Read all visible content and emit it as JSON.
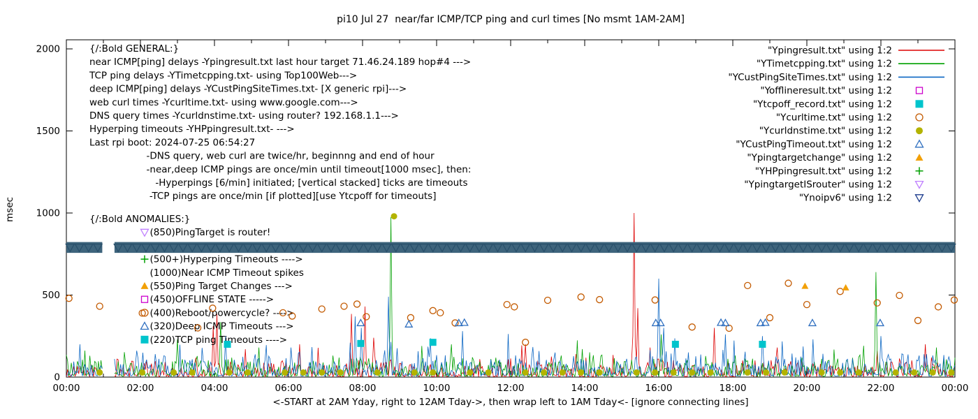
{
  "title": "pi10 Jul 27  near/far ICMP/TCP ping and curl times [No msmt 1AM-2AM]",
  "ylabel": "msec",
  "xlabel": "<-START at 2AM Yday, right to 12AM Tday->, then wrap left to 1AM Tday<- [ignore connecting lines]",
  "axes": {
    "x_ticks": [
      "00:00",
      "02:00",
      "04:00",
      "06:00",
      "08:00",
      "10:00",
      "12:00",
      "14:00",
      "16:00",
      "18:00",
      "20:00",
      "22:00",
      "00:00"
    ],
    "y_ticks": [
      0,
      500,
      1000,
      1500,
      2000
    ],
    "xlim_hours": [
      0,
      24
    ],
    "ylim": [
      0,
      2000
    ],
    "grid": false
  },
  "legend": [
    {
      "label": "\"Ypingresult.txt\" using 1:2",
      "marker": "line",
      "color": "#dd0000"
    },
    {
      "label": "\"YTimetcpping.txt\" using 1:2",
      "marker": "line",
      "color": "#00a000"
    },
    {
      "label": "\"YCustPingSiteTimes.txt\" using 1:2",
      "marker": "line",
      "color": "#0b66c3"
    },
    {
      "label": "\"Yofflineresult.txt\" using 1:2",
      "marker": "square-open",
      "color": "#cc00cc"
    },
    {
      "label": "\"Ytcpoff_record.txt\" using 1:2",
      "marker": "square-filled",
      "color": "#00c4cc"
    },
    {
      "label": "\"Ycurltime.txt\" using 1:2",
      "marker": "circle-open",
      "color": "#c35a00"
    },
    {
      "label": "\"Ycurldnstime.txt\" using 1:2",
      "marker": "circle-filled",
      "color": "#b3b300"
    },
    {
      "label": "\"YCustPingTimeout.txt\" using 1:2",
      "marker": "triangle-open",
      "color": "#3070c0"
    },
    {
      "label": "\"Ypingtargetchange\" using 1:2",
      "marker": "triangle-filled",
      "color": "#f2a007"
    },
    {
      "label": "\"YHPpingresult.txt\" using 1:2",
      "marker": "plus",
      "color": "#00a000"
    },
    {
      "label": "\"YpingtargetISrouter\" using 1:2",
      "marker": "triangle-down-open",
      "color": "#c080ff"
    },
    {
      "label": "\"Ynoipv6\" using 1:2",
      "marker": "triangle-down-open",
      "color": "#1a3a8c"
    }
  ],
  "general_text": [
    "{/:Bold GENERAL:}",
    "near ICMP[ping] delays -Ypingresult.txt last hour target 71.46.24.189 hop#4 --->",
    "TCP ping delays -YTimetcpping.txt- using Top100Web--->",
    "deep ICMP[ping] delays -YCustPingSiteTimes.txt- [X generic rpi]--->",
    "web curl times -Ycurltime.txt- using www.google.com--->",
    "DNS query times -Ycurldnstime.txt- using router? 192.168.1.1--->",
    "Hyperping timeouts -YHPpingresult.txt- --->",
    "Last rpi boot: 2024-07-25 06:54:27",
    "                   -DNS query, web curl are twice/hr, beginnng and end of hour",
    "                   -near,deep ICMP pings are once/min until timeout[1000 msec], then:",
    "                      -Hyperpings [6/min] initiated; [vertical stacked] ticks are timeouts",
    "                    -TCP pings are once/min [if plotted][use Ytcpoff for timeouts]"
  ],
  "anomalies_header": "{/:Bold ANOMALIES:}",
  "anomalies": [
    {
      "row": 0,
      "marker": "triangle-down-open",
      "color": "#c080ff",
      "text": "(850)PingTarget is router!"
    },
    {
      "row": 1,
      "marker": "triangle-down-open",
      "color": "#1a3a8c",
      "text": ""
    },
    {
      "row": 2,
      "marker": "plus",
      "color": "#00a000",
      "text": "(500+)Hyperping Timeouts ---->"
    },
    {
      "row": 3,
      "marker": null,
      "color": null,
      "text": "(1000)Near ICMP Timeout spikes"
    },
    {
      "row": 4,
      "marker": "triangle-filled",
      "color": "#f2a007",
      "text": "(550)Ping Target Changes --->"
    },
    {
      "row": 5,
      "marker": "square-open",
      "color": "#cc00cc",
      "text": "(450)OFFLINE STATE ----->"
    },
    {
      "row": 6,
      "marker": "circle-open",
      "color": "#c35a00",
      "text": "(400)Reboot/powercycle? ---->"
    },
    {
      "row": 7,
      "marker": "triangle-open",
      "color": "#3070c0",
      "text": "(320)Deep ICMP Timeouts --->"
    },
    {
      "row": 8,
      "marker": "square-filled",
      "color": "#00c4cc",
      "text": "(220)TCP ping Timeouts ---->"
    }
  ],
  "chart_data": {
    "type": "line",
    "x_unit": "hours",
    "xlim": [
      0,
      24
    ],
    "ylim": [
      0,
      2000
    ],
    "no_measurement_gap_hours": [
      0.97,
      1.3
    ],
    "lines": [
      {
        "name": "Ypingresult.txt",
        "color": "#dd0000",
        "baseline_range_msec": [
          2,
          100
        ],
        "spikes": [
          [
            3.95,
            310
          ],
          [
            4.05,
            385
          ],
          [
            6.3,
            200
          ],
          [
            7.7,
            385
          ],
          [
            8.05,
            430
          ],
          [
            8.3,
            240
          ],
          [
            12.4,
            200
          ],
          [
            15.33,
            1000
          ],
          [
            15.42,
            420
          ],
          [
            17.5,
            300
          ],
          [
            19.2,
            180
          ],
          [
            21.9,
            160
          ],
          [
            23.2,
            200
          ]
        ]
      },
      {
        "name": "YTimetcpping.txt",
        "color": "#00a000",
        "baseline_range_msec": [
          4,
          120
        ],
        "spikes": [
          [
            3.0,
            230
          ],
          [
            4.15,
            335
          ],
          [
            5.2,
            180
          ],
          [
            8.75,
            975
          ],
          [
            10.4,
            200
          ],
          [
            16.08,
            260
          ],
          [
            21.85,
            640
          ],
          [
            23.5,
            180
          ]
        ]
      },
      {
        "name": "YCustPingSiteTimes.txt",
        "color": "#0b66c3",
        "baseline_range_msec": [
          6,
          140
        ],
        "spikes": [
          [
            0.35,
            200
          ],
          [
            4.3,
            250
          ],
          [
            7.8,
            370
          ],
          [
            7.95,
            300
          ],
          [
            8.7,
            490
          ],
          [
            10.7,
            280
          ],
          [
            16.0,
            600
          ],
          [
            16.12,
            300
          ],
          [
            17.8,
            260
          ],
          [
            18.8,
            250
          ],
          [
            20.15,
            230
          ],
          [
            22.0,
            250
          ]
        ]
      }
    ],
    "scatter": [
      {
        "name": "Yofflineresult.txt",
        "marker": "square-open",
        "color": "#cc00cc",
        "points": []
      },
      {
        "name": "Ytcpoff_record.txt",
        "marker": "square-filled",
        "color": "#00c4cc",
        "points": [
          [
            4.35,
            200
          ],
          [
            7.95,
            205
          ],
          [
            9.9,
            212
          ],
          [
            16.45,
            200
          ],
          [
            18.8,
            200
          ]
        ]
      },
      {
        "name": "Ycurltime.txt",
        "marker": "circle-open",
        "color": "#c35a00",
        "points": [
          [
            0.07,
            480
          ],
          [
            0.9,
            432
          ],
          [
            2.05,
            390
          ],
          [
            3.55,
            300
          ],
          [
            3.95,
            420
          ],
          [
            5.85,
            392
          ],
          [
            6.1,
            372
          ],
          [
            6.9,
            415
          ],
          [
            7.5,
            432
          ],
          [
            7.85,
            445
          ],
          [
            8.1,
            368
          ],
          [
            9.3,
            362
          ],
          [
            9.9,
            405
          ],
          [
            10.1,
            392
          ],
          [
            10.5,
            330
          ],
          [
            11.9,
            442
          ],
          [
            12.1,
            428
          ],
          [
            12.4,
            212
          ],
          [
            13.0,
            468
          ],
          [
            13.9,
            488
          ],
          [
            14.4,
            472
          ],
          [
            15.9,
            470
          ],
          [
            16.9,
            305
          ],
          [
            17.9,
            298
          ],
          [
            18.4,
            558
          ],
          [
            19.0,
            362
          ],
          [
            19.5,
            572
          ],
          [
            20.0,
            442
          ],
          [
            20.9,
            522
          ],
          [
            21.9,
            452
          ],
          [
            22.5,
            498
          ],
          [
            23.0,
            345
          ],
          [
            23.55,
            428
          ],
          [
            23.98,
            470
          ]
        ]
      },
      {
        "name": "Ycurldnstime.txt",
        "marker": "circle-filled",
        "color": "#b3b300",
        "points": [
          [
            0.9,
            28
          ],
          [
            2.05,
            28
          ],
          [
            2.9,
            28
          ],
          [
            3.4,
            28
          ],
          [
            4.4,
            28
          ],
          [
            4.9,
            28
          ],
          [
            5.9,
            28
          ],
          [
            6.4,
            28
          ],
          [
            6.9,
            28
          ],
          [
            7.4,
            28
          ],
          [
            8.4,
            28
          ],
          [
            8.85,
            980
          ],
          [
            9.4,
            28
          ],
          [
            9.9,
            28
          ],
          [
            10.9,
            28
          ],
          [
            11.4,
            28
          ],
          [
            12.4,
            28
          ],
          [
            12.9,
            28
          ],
          [
            13.4,
            28
          ],
          [
            13.9,
            28
          ],
          [
            14.4,
            28
          ],
          [
            15.4,
            28
          ],
          [
            15.9,
            28
          ],
          [
            16.4,
            28
          ],
          [
            16.9,
            28
          ],
          [
            17.4,
            28
          ],
          [
            18.4,
            28
          ],
          [
            18.9,
            28
          ],
          [
            19.4,
            28
          ],
          [
            20.4,
            28
          ],
          [
            20.9,
            28
          ],
          [
            21.4,
            28
          ],
          [
            22.4,
            28
          ],
          [
            22.9,
            28
          ],
          [
            23.4,
            28
          ],
          [
            23.9,
            28
          ]
        ]
      },
      {
        "name": "YCustPingTimeout.txt",
        "marker": "triangle-open",
        "color": "#3070c0",
        "points": [
          [
            7.95,
            330
          ],
          [
            9.25,
            322
          ],
          [
            10.6,
            330
          ],
          [
            10.75,
            332
          ],
          [
            15.92,
            330
          ],
          [
            16.05,
            330
          ],
          [
            17.68,
            332
          ],
          [
            17.8,
            330
          ],
          [
            18.75,
            330
          ],
          [
            18.88,
            332
          ],
          [
            20.15,
            330
          ],
          [
            21.98,
            330
          ]
        ]
      },
      {
        "name": "Ypingtargetchange",
        "marker": "triangle-filled",
        "color": "#f2a007",
        "points": [
          [
            19.95,
            555
          ],
          [
            21.05,
            545
          ]
        ]
      },
      {
        "name": "YHPpingresult.txt",
        "marker": "plus",
        "color": "#00a000",
        "points": []
      },
      {
        "name": "YpingtargetISrouter",
        "marker": "triangle-down-open",
        "color": "#c080ff",
        "points": []
      },
      {
        "name": "Ynoipv6",
        "marker": "triangle-down-open",
        "color": "#1a3a8c",
        "points": []
      }
    ],
    "band": {
      "series": "Ynoipv6",
      "y_center_msec": 790,
      "y_half_height_msec": 33,
      "segments_hours": [
        [
          0,
          0.97
        ],
        [
          1.3,
          24
        ]
      ],
      "fill": "#3e647c",
      "texture_stroke": "#29506b"
    }
  }
}
